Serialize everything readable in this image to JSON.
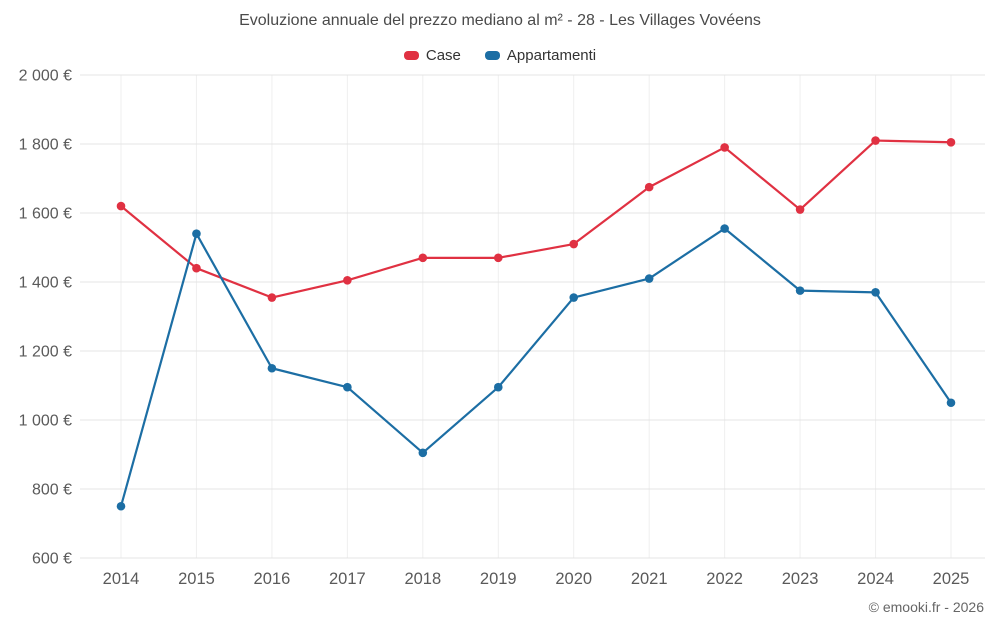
{
  "title": "Evoluzione annuale del prezzo mediano al m² - 28 - Les Villages Vovéens",
  "footer": "© emooki.fr - 2026",
  "chart_data": {
    "type": "line",
    "x": [
      "2014",
      "2015",
      "2016",
      "2017",
      "2018",
      "2019",
      "2020",
      "2021",
      "2022",
      "2023",
      "2024",
      "2025"
    ],
    "series": [
      {
        "name": "Case",
        "color": "#e03142",
        "values": [
          1620,
          1440,
          1355,
          1405,
          1470,
          1470,
          1510,
          1675,
          1790,
          1610,
          1810,
          1805
        ]
      },
      {
        "name": "Appartamenti",
        "color": "#1c6ea4",
        "values": [
          750,
          1540,
          1150,
          1095,
          905,
          1095,
          1355,
          1410,
          1555,
          1375,
          1370,
          1050
        ]
      }
    ],
    "ylim": [
      600,
      2000
    ],
    "yticks": [
      600,
      800,
      1000,
      1200,
      1400,
      1600,
      1800,
      2000
    ],
    "ytick_labels": [
      "600 €",
      "800 €",
      "1 000 €",
      "1 200 €",
      "1 400 €",
      "1 600 €",
      "1 800 €",
      "2 000 €"
    ],
    "grid": true,
    "legend_position": "top",
    "colors": {
      "grid": "#e4e4e4",
      "grid_vertical": "#efefef",
      "tick_text": "#5a5a5a",
      "title_text": "#4a4a4a"
    }
  }
}
